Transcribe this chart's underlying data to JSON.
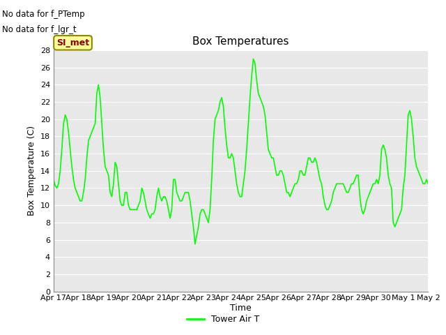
{
  "title": "Box Temperatures",
  "xlabel": "Time",
  "ylabel": "Box Temperature (C)",
  "no_data_text1": "No data for f_PTemp",
  "no_data_text2": "No data for f_lgr_t",
  "si_met_label": "SI_met",
  "legend_label": "Tower Air T",
  "line_color": "#00FF00",
  "background_color": "#E8E8E8",
  "ylim": [
    0,
    28
  ],
  "yticks": [
    0,
    2,
    4,
    6,
    8,
    10,
    12,
    14,
    16,
    18,
    20,
    22,
    24,
    26,
    28
  ],
  "xtick_labels": [
    "Apr 17",
    "Apr 18",
    "Apr 19",
    "Apr 20",
    "Apr 21",
    "Apr 22",
    "Apr 23",
    "Apr 24",
    "Apr 25",
    "Apr 26",
    "Apr 27",
    "Apr 28",
    "Apr 29",
    "Apr 30",
    "May 1",
    "May 2"
  ],
  "x_values": [
    0.0,
    0.067,
    0.133,
    0.2,
    0.267,
    0.333,
    0.4,
    0.467,
    0.533,
    0.6,
    0.667,
    0.733,
    0.8,
    0.867,
    0.933,
    1.0,
    1.067,
    1.133,
    1.2,
    1.267,
    1.333,
    1.4,
    1.467,
    1.533,
    1.6,
    1.667,
    1.733,
    1.8,
    1.867,
    1.933,
    2.0,
    2.067,
    2.133,
    2.2,
    2.267,
    2.333,
    2.4,
    2.467,
    2.533,
    2.6,
    2.667,
    2.733,
    2.8,
    2.867,
    2.933,
    3.0,
    3.067,
    3.133,
    3.2,
    3.267,
    3.333,
    3.4,
    3.467,
    3.533,
    3.6,
    3.667,
    3.733,
    3.8,
    3.867,
    3.933,
    4.0,
    4.067,
    4.133,
    4.2,
    4.267,
    4.333,
    4.4,
    4.467,
    4.533,
    4.6,
    4.667,
    4.733,
    4.8,
    4.867,
    4.933,
    5.0,
    5.067,
    5.133,
    5.2,
    5.267,
    5.333,
    5.4,
    5.467,
    5.533,
    5.6,
    5.667,
    5.733,
    5.8,
    5.867,
    5.933,
    6.0,
    6.067,
    6.133,
    6.2,
    6.267,
    6.333,
    6.4,
    6.467,
    6.533,
    6.6,
    6.667,
    6.733,
    6.8,
    6.867,
    6.933,
    7.0,
    7.067,
    7.133,
    7.2,
    7.267,
    7.333,
    7.4,
    7.467,
    7.533,
    7.6,
    7.667,
    7.733,
    7.8,
    7.867,
    7.933,
    8.0,
    8.067,
    8.133,
    8.2,
    8.267,
    8.333,
    8.4,
    8.467,
    8.533,
    8.6,
    8.667,
    8.733,
    8.8,
    8.867,
    8.933,
    9.0,
    9.067,
    9.133,
    9.2,
    9.267,
    9.333,
    9.4,
    9.467,
    9.533,
    9.6,
    9.667,
    9.733,
    9.8,
    9.867,
    9.933,
    10.0,
    10.067,
    10.133,
    10.2,
    10.267,
    10.333,
    10.4,
    10.467,
    10.533,
    10.6,
    10.667,
    10.733,
    10.8,
    10.867,
    10.933,
    11.0,
    11.067,
    11.133,
    11.2,
    11.267,
    11.333,
    11.4,
    11.467,
    11.533,
    11.6,
    11.667,
    11.733,
    11.8,
    11.867,
    11.933,
    12.0,
    12.067,
    12.133,
    12.2,
    12.267,
    12.333,
    12.4,
    12.467,
    12.533,
    12.6,
    12.667,
    12.733,
    12.8,
    12.867,
    12.933,
    13.0,
    13.067,
    13.133,
    13.2,
    13.267,
    13.333,
    13.4,
    13.467,
    13.533,
    13.6,
    13.667,
    13.733,
    13.8,
    13.867,
    13.933,
    14.0,
    14.067,
    14.133,
    14.2,
    14.267,
    14.333,
    14.4,
    14.467,
    14.533,
    14.6,
    14.667,
    14.733,
    14.8,
    14.867,
    14.933,
    15.0
  ],
  "y_values": [
    13.0,
    12.3,
    12.0,
    12.5,
    14.0,
    16.5,
    19.5,
    20.5,
    20.0,
    18.5,
    16.5,
    14.5,
    13.0,
    12.0,
    11.5,
    11.0,
    10.5,
    10.5,
    11.5,
    13.0,
    15.5,
    17.5,
    18.0,
    18.5,
    19.0,
    19.5,
    23.0,
    24.0,
    22.5,
    19.5,
    16.5,
    14.5,
    14.0,
    13.5,
    11.5,
    11.0,
    12.5,
    15.0,
    14.5,
    12.5,
    10.5,
    10.0,
    10.0,
    11.5,
    11.5,
    10.0,
    9.5,
    9.5,
    9.5,
    9.5,
    9.5,
    10.0,
    10.5,
    12.0,
    11.5,
    10.5,
    9.5,
    9.0,
    8.5,
    9.0,
    9.0,
    9.5,
    11.0,
    12.0,
    11.0,
    10.5,
    11.0,
    11.0,
    10.5,
    9.5,
    8.5,
    9.5,
    13.0,
    13.0,
    11.5,
    11.0,
    10.5,
    10.5,
    11.0,
    11.5,
    11.5,
    11.5,
    10.5,
    9.0,
    7.5,
    5.5,
    6.5,
    7.5,
    9.0,
    9.5,
    9.5,
    9.0,
    8.5,
    8.0,
    9.5,
    13.0,
    17.5,
    20.0,
    20.5,
    21.0,
    22.0,
    22.5,
    21.5,
    19.0,
    17.0,
    15.5,
    15.5,
    16.0,
    15.5,
    14.0,
    12.5,
    11.5,
    11.0,
    11.0,
    12.5,
    14.0,
    16.5,
    19.5,
    22.5,
    25.0,
    27.0,
    26.5,
    24.5,
    23.0,
    22.5,
    22.0,
    21.5,
    20.5,
    18.5,
    16.5,
    16.0,
    15.5,
    15.5,
    14.5,
    13.5,
    13.5,
    14.0,
    14.0,
    13.5,
    12.5,
    11.5,
    11.5,
    11.0,
    11.5,
    12.0,
    12.5,
    12.5,
    13.0,
    14.0,
    14.0,
    13.5,
    13.5,
    14.5,
    15.5,
    15.5,
    15.0,
    15.0,
    15.5,
    15.0,
    14.0,
    13.0,
    12.5,
    11.0,
    10.0,
    9.5,
    9.5,
    10.0,
    10.5,
    11.5,
    12.0,
    12.5,
    12.5,
    12.5,
    12.5,
    12.5,
    12.0,
    11.5,
    11.5,
    12.0,
    12.5,
    12.5,
    13.0,
    13.5,
    13.5,
    11.0,
    9.5,
    9.0,
    9.5,
    10.5,
    11.0,
    11.5,
    12.0,
    12.5,
    12.5,
    13.0,
    12.5,
    13.5,
    16.5,
    17.0,
    16.5,
    15.5,
    13.5,
    12.5,
    12.0,
    8.0,
    7.5,
    8.0,
    8.5,
    9.0,
    9.5,
    12.0,
    13.5,
    17.0,
    20.5,
    21.0,
    20.0,
    18.0,
    15.5,
    14.5,
    14.0,
    13.5,
    13.0,
    12.5,
    12.5,
    13.0,
    12.5
  ]
}
